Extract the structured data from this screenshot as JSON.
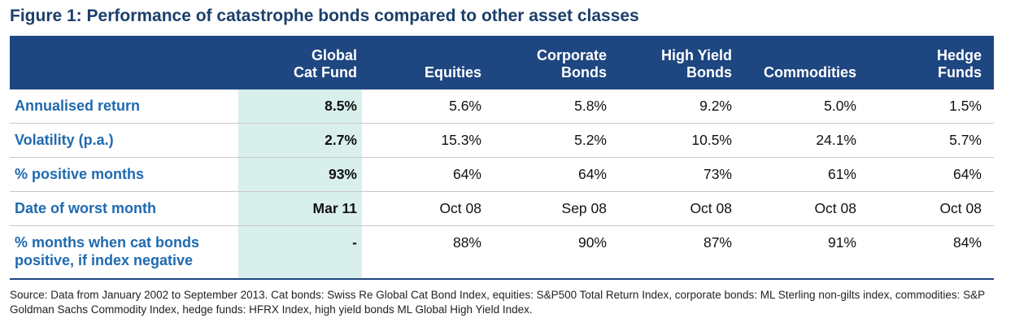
{
  "figure": {
    "title": "Figure 1: Performance of catastrophe bonds compared to other asset classes"
  },
  "table": {
    "columns": [
      "Global\nCat Fund",
      "Equities",
      "Corporate\nBonds",
      "High Yield\nBonds",
      "Commodities",
      "Hedge\nFunds"
    ],
    "rows": [
      {
        "label": "Annualised return",
        "values": [
          "8.5%",
          "5.6%",
          "5.8%",
          "9.2%",
          "5.0%",
          "1.5%"
        ]
      },
      {
        "label": "Volatility (p.a.)",
        "values": [
          "2.7%",
          "15.3%",
          "5.2%",
          "10.5%",
          "24.1%",
          "5.7%"
        ]
      },
      {
        "label": "% positive months",
        "values": [
          "93%",
          "64%",
          "64%",
          "73%",
          "61%",
          "64%"
        ]
      },
      {
        "label": "Date of worst month",
        "values": [
          "Mar 11",
          "Oct 08",
          "Sep 08",
          "Oct 08",
          "Oct 08",
          "Oct 08"
        ]
      },
      {
        "label": "% months when cat bonds\npositive, if index negative",
        "values": [
          "-",
          "88%",
          "90%",
          "87%",
          "91%",
          "84%"
        ]
      }
    ]
  },
  "source": "Source: Data from January 2002 to September 2013. Cat bonds: Swiss Re Global Cat Bond Index, equities: S&P500 Total Return Index, corporate bonds: ML Sterling non-gilts index, commodities:  S&P Goldman Sachs Commodity Index, hedge funds: HFRX Index, high yield bonds ML Global High Yield Index.",
  "colors": {
    "title": "#1b3f6b",
    "header_bg": "#1e4680",
    "row_label": "#1f6ab0",
    "highlight_column": "#d9efec"
  }
}
